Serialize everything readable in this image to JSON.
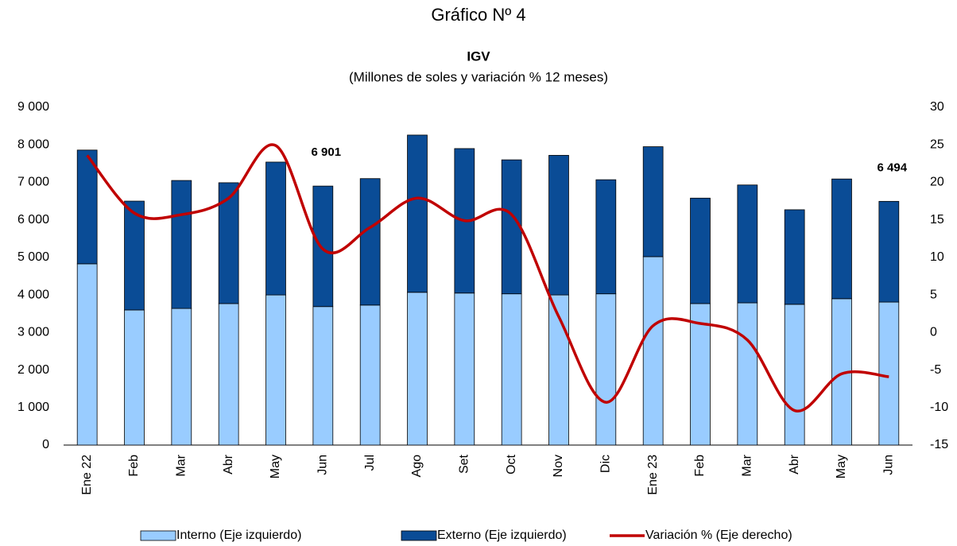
{
  "chart_data": {
    "type": "bar",
    "title": "Gráfico Nº 4",
    "subtitle_bold": "IGV",
    "subtitle": "(Millones de soles y variación % 12 meses)",
    "stacked": true,
    "categories": [
      "Ene 22",
      "Feb",
      "Mar",
      "Abr",
      "May",
      "Jun",
      "Jul",
      "Ago",
      "Set",
      "Oct",
      "Nov",
      "Dic",
      "Ene 23",
      "Feb",
      "Mar",
      "Abr",
      "May",
      "Jun"
    ],
    "series": [
      {
        "name": "Interno (Eje izquierdo)",
        "type": "bar",
        "color": "#99ccff",
        "values": [
          4830,
          3600,
          3640,
          3770,
          4000,
          3690,
          3730,
          4070,
          4050,
          4030,
          4000,
          4030,
          5020,
          3770,
          3790,
          3750,
          3900,
          3810
        ]
      },
      {
        "name": "Externo (Eje izquierdo)",
        "type": "bar",
        "color": "#0a4c96",
        "values": [
          3030,
          2900,
          3410,
          3220,
          3540,
          3211,
          3370,
          4190,
          3850,
          3570,
          3720,
          3040,
          2930,
          2810,
          3140,
          2520,
          3190,
          2684
        ]
      },
      {
        "name": "Variación % (Eje derecho)",
        "type": "line",
        "axis": "y2",
        "color": "#c00000",
        "values": [
          23.6,
          15.9,
          15.7,
          17.9,
          24.9,
          11.1,
          14.0,
          17.9,
          14.9,
          15.7,
          2.1,
          -9.3,
          0.9,
          1.2,
          -1.0,
          -10.4,
          -5.5,
          -5.9
        ]
      }
    ],
    "total_value_labels": [
      null,
      null,
      null,
      null,
      null,
      "6 901",
      null,
      null,
      null,
      null,
      null,
      null,
      null,
      null,
      null,
      null,
      null,
      "6 494"
    ],
    "ylim": [
      0,
      9000
    ],
    "yticks": [
      0,
      {
        "value": 1000,
        "label": "1 000"
      },
      {
        "value": 2000,
        "label": "2 000"
      },
      {
        "value": 3000,
        "label": "3 000"
      },
      {
        "value": 4000,
        "label": "4 000"
      },
      {
        "value": 5000,
        "label": "5 000"
      },
      {
        "value": 6000,
        "label": "6 000"
      },
      {
        "value": 7000,
        "label": "7 000"
      },
      {
        "value": 8000,
        "label": "8 000"
      },
      {
        "value": 9000,
        "label": "9 000"
      }
    ],
    "y2lim": [
      -15,
      30
    ],
    "y2ticks": [
      -15,
      -10,
      -5,
      0,
      5,
      10,
      15,
      20,
      25,
      30
    ],
    "legend": "bottom"
  }
}
